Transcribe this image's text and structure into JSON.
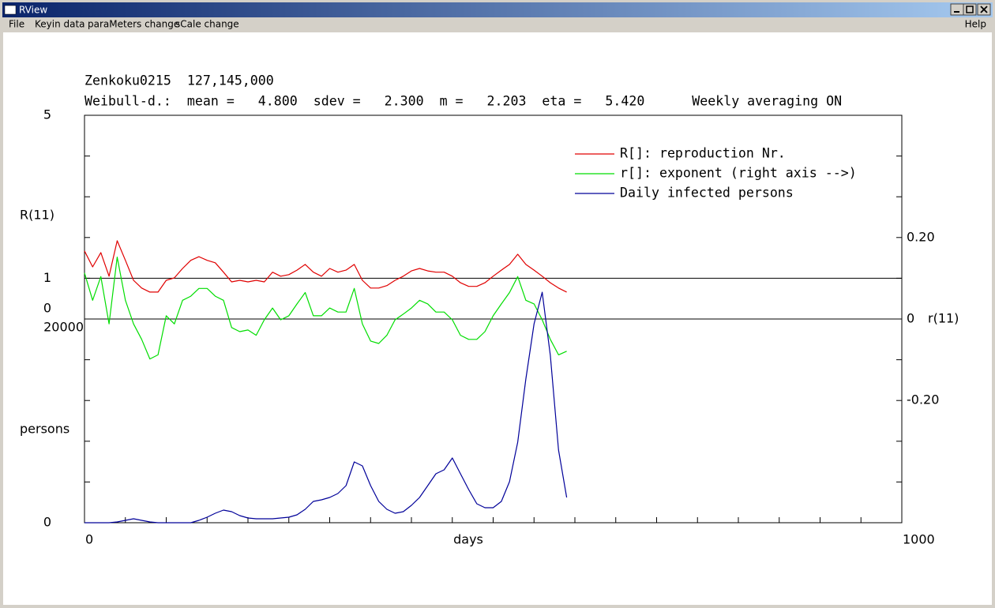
{
  "window": {
    "title": "RView",
    "menu": [
      "File",
      "Keyin data",
      "paraMeters change",
      "sCale change"
    ],
    "help": "Help"
  },
  "chart_data": {
    "type": "line",
    "title": "Zenkoku0215  127,145,000",
    "subtitle": "Weibull-d.:  mean =   4.800  sdev =   2.300  m =   2.203  eta =   5.420      Weekly averaging ON",
    "xlabel": "days",
    "ylabel": "R(11)",
    "y2label": "r(11)",
    "y3label": "persons",
    "xlim": [
      0,
      1000
    ],
    "xticks": [
      0,
      1000
    ],
    "xminorticks": [
      0,
      50,
      100,
      150,
      200,
      250,
      300,
      350,
      400,
      450,
      500,
      550,
      600,
      650,
      700,
      750,
      800,
      850,
      900,
      950,
      1000
    ],
    "ylim": [
      0,
      5
    ],
    "yticks": [
      5,
      1,
      0
    ],
    "yminorticks": [
      0,
      1,
      2,
      3,
      4,
      5
    ],
    "y2lim": [
      -0.5,
      0.5
    ],
    "y2ticks": [
      {
        "value": 0.2,
        "label": "0.20"
      },
      0,
      {
        "value": -0.2,
        "label": "-0.20"
      }
    ],
    "y2minorticks": [
      -0.5,
      -0.4,
      -0.3,
      -0.2,
      -0.1,
      0,
      0.1,
      0.2,
      0.3,
      0.4,
      0.5
    ],
    "y3lim": [
      0,
      20000
    ],
    "y3ticks": [
      20000,
      0
    ],
    "y3minorticks": [
      0,
      4000,
      8000,
      12000,
      16000
    ],
    "reference_lines": [
      1,
      0
    ],
    "x": [
      0,
      10,
      20,
      30,
      40,
      50,
      60,
      70,
      80,
      90,
      100,
      110,
      120,
      130,
      140,
      150,
      160,
      170,
      180,
      190,
      200,
      210,
      220,
      230,
      240,
      250,
      260,
      270,
      280,
      290,
      300,
      310,
      320,
      330,
      340,
      350,
      360,
      370,
      380,
      390,
      400,
      410,
      420,
      430,
      440,
      450,
      460,
      470,
      480,
      490,
      500,
      510,
      520,
      530,
      540,
      550,
      560,
      570,
      580,
      590
    ],
    "series": [
      {
        "name": "R[]: reproduction Nr.",
        "color": "#e00000",
        "values": [
          1.67,
          1.28,
          1.63,
          1.05,
          1.92,
          1.44,
          0.95,
          0.76,
          0.66,
          0.66,
          0.95,
          1.01,
          1.24,
          1.44,
          1.53,
          1.44,
          1.38,
          1.15,
          0.91,
          0.95,
          0.91,
          0.95,
          0.91,
          1.15,
          1.05,
          1.09,
          1.2,
          1.34,
          1.15,
          1.05,
          1.24,
          1.15,
          1.2,
          1.34,
          0.95,
          0.76,
          0.76,
          0.82,
          0.95,
          1.05,
          1.18,
          1.24,
          1.18,
          1.15,
          1.15,
          1.05,
          0.89,
          0.8,
          0.8,
          0.89,
          1.05,
          1.2,
          1.34,
          1.59,
          1.34,
          1.2,
          1.05,
          0.89,
          0.76,
          0.66
        ]
      },
      {
        "name": "r[]: exponent (right axis -->)",
        "color": "#00dd00",
        "axis": "y2",
        "values": [
          0.113,
          0.046,
          0.104,
          -0.012,
          0.152,
          0.046,
          -0.012,
          -0.05,
          -0.098,
          -0.088,
          0.008,
          -0.012,
          0.046,
          0.056,
          0.075,
          0.075,
          0.056,
          0.046,
          -0.021,
          -0.031,
          -0.027,
          -0.04,
          -0.002,
          0.027,
          -0.002,
          0.008,
          0.037,
          0.065,
          0.008,
          0.008,
          0.027,
          0.017,
          0.017,
          0.075,
          -0.012,
          -0.054,
          -0.06,
          -0.04,
          -0.002,
          0.012,
          0.027,
          0.046,
          0.037,
          0.017,
          0.017,
          -0.002,
          -0.04,
          -0.05,
          -0.05,
          -0.031,
          0.008,
          0.037,
          0.065,
          0.104,
          0.046,
          0.037,
          -0.002,
          -0.05,
          -0.088,
          -0.079
        ]
      },
      {
        "name": "Daily infected persons",
        "color": "#000099",
        "axis": "y3",
        "values": [
          0,
          0,
          0,
          0,
          78,
          233,
          388,
          233,
          78,
          0,
          0,
          0,
          0,
          0,
          233,
          543,
          930,
          1240,
          1085,
          698,
          465,
          388,
          388,
          388,
          465,
          543,
          775,
          1318,
          2093,
          2248,
          2480,
          2868,
          3643,
          5968,
          5580,
          3643,
          2093,
          1318,
          930,
          1085,
          1705,
          2480,
          3643,
          4805,
          5193,
          6355,
          4805,
          3255,
          1860,
          1473,
          1473,
          2093,
          4030,
          7905,
          14105,
          19530,
          22630,
          16430,
          7130,
          2480
        ]
      }
    ]
  }
}
